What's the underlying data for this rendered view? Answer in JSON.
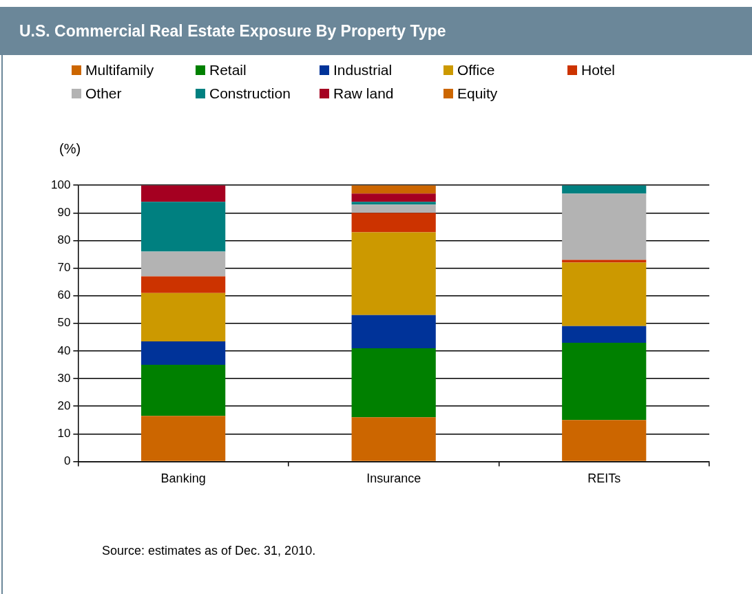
{
  "chart_data": {
    "type": "bar",
    "title": "U.S. Commercial Real Estate Exposure By Property Type",
    "ylabel": "(%)",
    "categories": [
      "Banking",
      "Insurance",
      "REITs"
    ],
    "stacked": true,
    "legend": "top",
    "grid": "y",
    "ylim": [
      0,
      100
    ],
    "yticks": [
      0,
      10,
      20,
      30,
      40,
      50,
      60,
      70,
      80,
      90,
      100
    ],
    "series": [
      {
        "name": "Multifamily",
        "color": "#cc6600",
        "values": [
          16.5,
          16,
          15
        ]
      },
      {
        "name": "Retail",
        "color": "#008000",
        "values": [
          18.5,
          25,
          28
        ]
      },
      {
        "name": "Industrial",
        "color": "#003399",
        "values": [
          8.5,
          12,
          6
        ]
      },
      {
        "name": "Office",
        "color": "#cc9900",
        "values": [
          17.5,
          30,
          23
        ]
      },
      {
        "name": "Hotel",
        "color": "#cc3300",
        "values": [
          6,
          7,
          1
        ]
      },
      {
        "name": "Other",
        "color": "#b3b3b3",
        "values": [
          9,
          3,
          24
        ]
      },
      {
        "name": "Construction",
        "color": "#008080",
        "values": [
          18,
          1,
          3
        ]
      },
      {
        "name": "Raw land",
        "color": "#a50021",
        "values": [
          6,
          3,
          0
        ]
      },
      {
        "name": "Equity",
        "color": "#cc6600",
        "values": [
          0,
          3,
          0
        ]
      }
    ],
    "annotations": [
      "Source: estimates as of Dec. 31, 2010."
    ]
  }
}
